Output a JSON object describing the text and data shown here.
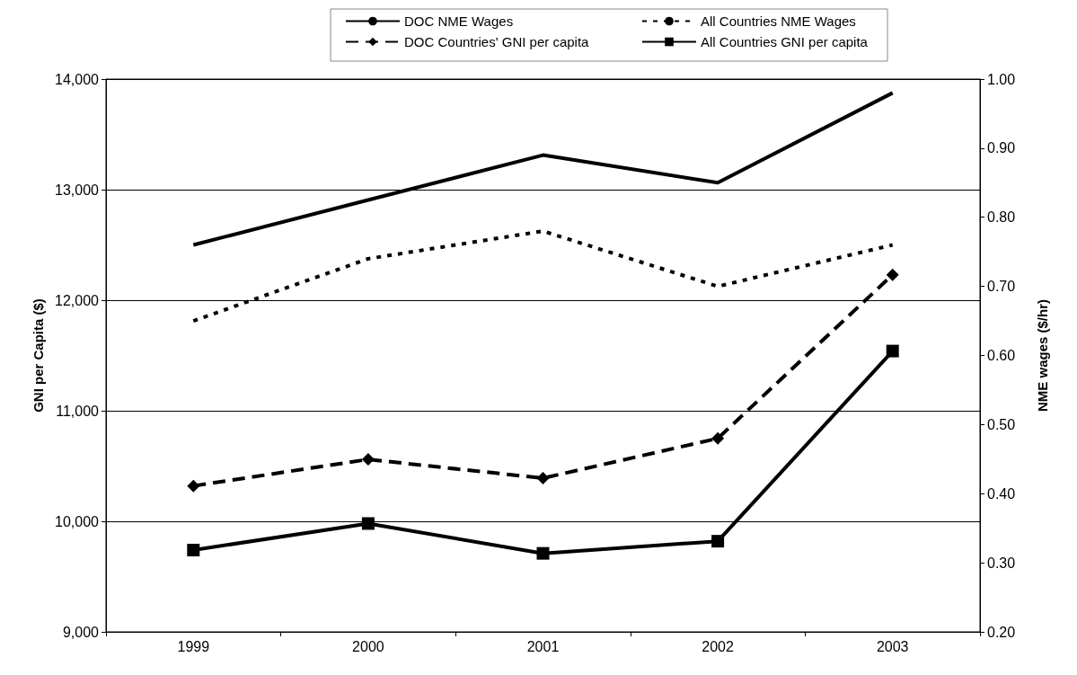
{
  "chart_data": {
    "type": "line",
    "ylabel": "GNI per Capita ($)",
    "y2label": "NME wages ($/hr)",
    "categories": [
      "1999",
      "2000",
      "2001",
      "2002",
      "2003"
    ],
    "series": [
      {
        "name": "DOC NME Wages",
        "color": "#000000",
        "axis": "y2",
        "marker": "none",
        "line_style": "solid",
        "values": [
          0.76,
          0.825,
          0.89,
          0.85,
          0.98
        ]
      },
      {
        "name": "All Countries NME Wages",
        "color": "#000000",
        "axis": "y2",
        "marker": "none",
        "line_style": "dotted",
        "values": [
          0.65,
          0.74,
          0.78,
          0.7,
          0.76
        ]
      },
      {
        "name": "DOC Countries' GNI per capita",
        "color": "#000000",
        "marker": "diamond",
        "line_style": "dashed",
        "values": [
          10320,
          10560,
          10390,
          10750,
          12230
        ]
      },
      {
        "name": "All Countries GNI per capita",
        "color": "#000000",
        "marker": "square",
        "line_style": "solid",
        "values": [
          9740,
          9980,
          9710,
          9820,
          11540
        ]
      }
    ],
    "ylim": [
      9000,
      14000
    ],
    "yticks": [
      {
        "value": 9000,
        "label": "9,000"
      },
      {
        "value": 10000,
        "label": "10,000"
      },
      {
        "value": 11000,
        "label": "11,000"
      },
      {
        "value": 12000,
        "label": "12,000"
      },
      {
        "value": 13000,
        "label": "13,000"
      },
      {
        "value": 14000,
        "label": "14,000"
      }
    ],
    "y2lim": [
      0.2,
      1.0
    ],
    "y2ticks": [
      {
        "value": 0.2,
        "label": "0.20"
      },
      {
        "value": 0.3,
        "label": "0.30"
      },
      {
        "value": 0.4,
        "label": "0.40"
      },
      {
        "value": 0.5,
        "label": "0.50"
      },
      {
        "value": 0.6,
        "label": "0.60"
      },
      {
        "value": 0.7,
        "label": "0.70"
      },
      {
        "value": 0.8,
        "label": "0.80"
      },
      {
        "value": 0.9,
        "label": "0.90"
      },
      {
        "value": 1.0,
        "label": "1.00"
      }
    ],
    "grid": "y",
    "legend": "top"
  }
}
